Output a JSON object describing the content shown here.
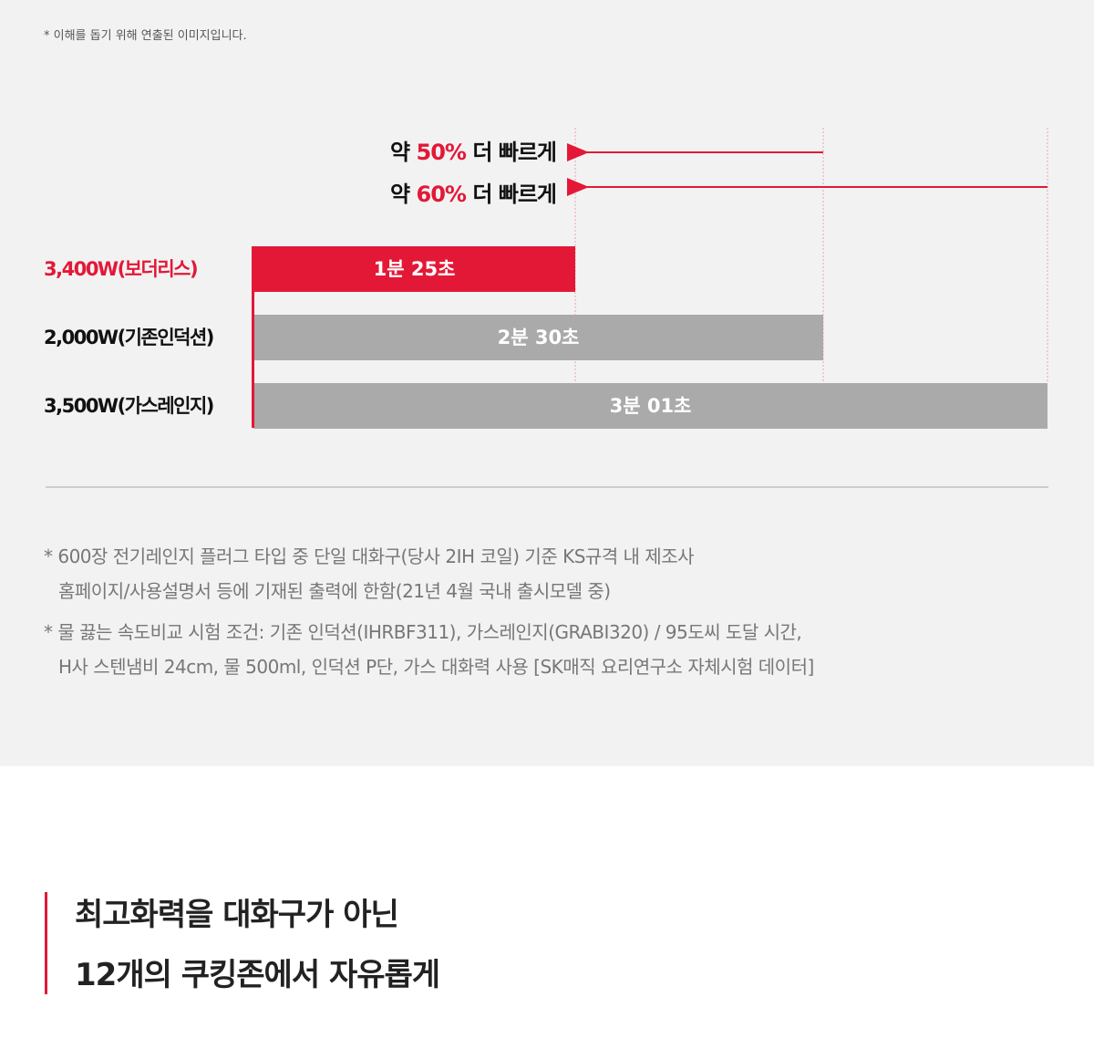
{
  "note": "* 이해를 돕기 위해 연출된 이미지입니다.",
  "comparisons": [
    {
      "prefix": "약",
      "highlight": "50%",
      "suffix": "더 빠르게"
    },
    {
      "prefix": "약",
      "highlight": "60%",
      "suffix": "더 빠르게"
    }
  ],
  "bars": [
    {
      "label": "3,400W(보더리스)",
      "time": "1분 25초"
    },
    {
      "label": "2,000W(기존인덕션)",
      "time": "2분 30초"
    },
    {
      "label": "3,500W(가스레인지)",
      "time": "3분 01초"
    }
  ],
  "footnotes": [
    [
      "* 600장 전기레인지 플러그 타입 중 단일 대화구(당사 2IH 코일) 기준 KS규격 내 제조사",
      "홈페이지/사용설명서 등에 기재된 출력에 한함(21년 4월 국내 출시모델 중)"
    ],
    [
      "* 물 끓는 속도비교 시험 조건: 기존 인덕션(IHRBF311), 가스레인지(GRABI320) / 95도씨 도달 시간,",
      "H사 스텐냄비 24cm, 물 500ml, 인덕션 P단, 가스 대화력 사용 [SK매직 요리연구소 자체시험 데이터]"
    ]
  ],
  "heading": [
    "최고화력을 대화구가 아닌",
    "12개의 쿠킹존에서 자유롭게"
  ]
}
